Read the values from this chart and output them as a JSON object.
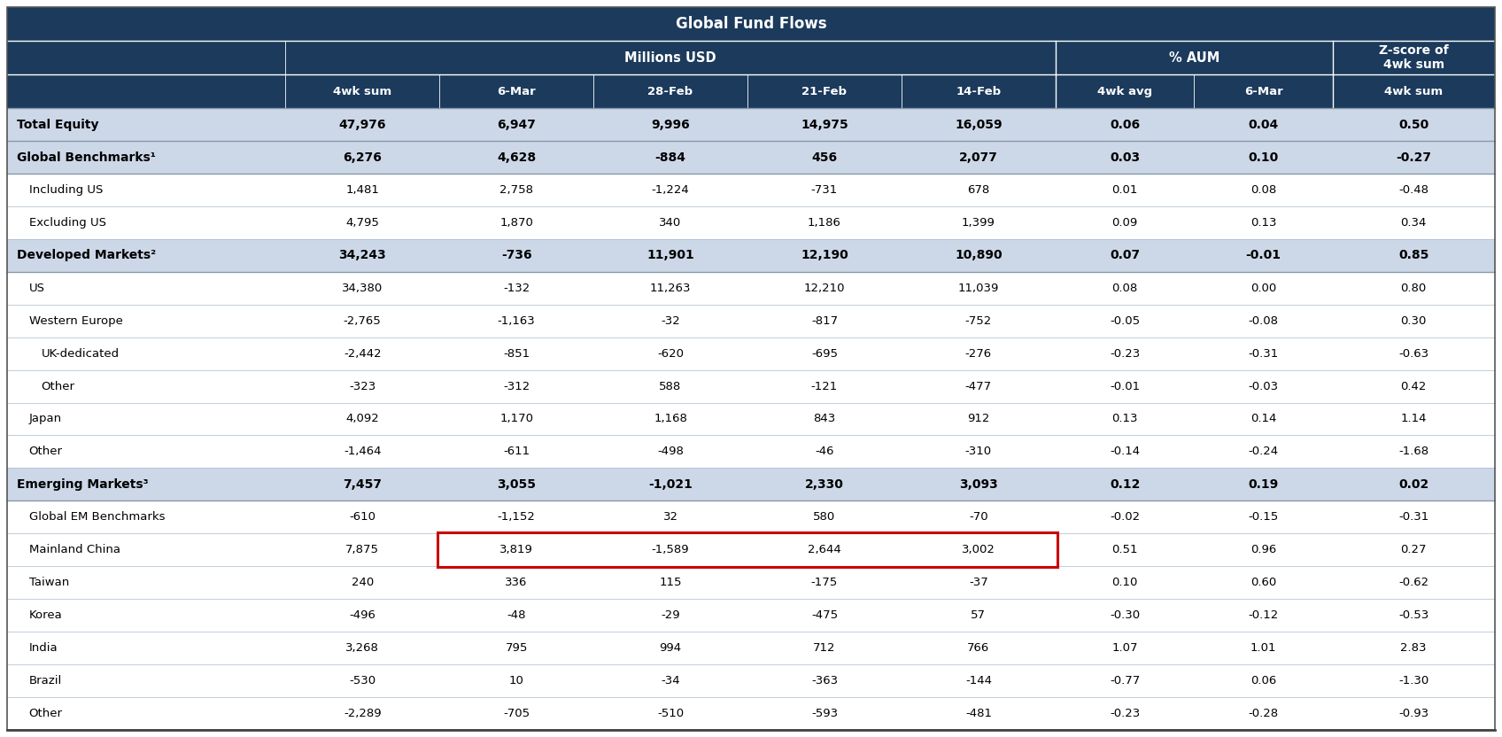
{
  "title_main": "Global Fund Flows",
  "col_headers_row3": [
    "4wk sum",
    "6-Mar",
    "28-Feb",
    "21-Feb",
    "14-Feb",
    "4wk avg",
    "6-Mar",
    "4wk sum"
  ],
  "rows": [
    {
      "label": "Total Equity",
      "bold": true,
      "indent": 0,
      "bg": "#ccd8e8",
      "values": [
        "47,976",
        "6,947",
        "9,996",
        "14,975",
        "16,059",
        "0.06",
        "0.04",
        "0.50"
      ]
    },
    {
      "label": "Global Benchmarks¹",
      "bold": true,
      "indent": 0,
      "bg": "#ccd8e8",
      "values": [
        "6,276",
        "4,628",
        "-884",
        "456",
        "2,077",
        "0.03",
        "0.10",
        "-0.27"
      ]
    },
    {
      "label": "Including US",
      "bold": false,
      "indent": 1,
      "bg": "#ffffff",
      "values": [
        "1,481",
        "2,758",
        "-1,224",
        "-731",
        "678",
        "0.01",
        "0.08",
        "-0.48"
      ]
    },
    {
      "label": "Excluding US",
      "bold": false,
      "indent": 1,
      "bg": "#ffffff",
      "values": [
        "4,795",
        "1,870",
        "340",
        "1,186",
        "1,399",
        "0.09",
        "0.13",
        "0.34"
      ]
    },
    {
      "label": "Developed Markets²",
      "bold": true,
      "indent": 0,
      "bg": "#ccd8e8",
      "values": [
        "34,243",
        "-736",
        "11,901",
        "12,190",
        "10,890",
        "0.07",
        "-0.01",
        "0.85"
      ]
    },
    {
      "label": "US",
      "bold": false,
      "indent": 1,
      "bg": "#ffffff",
      "values": [
        "34,380",
        "-132",
        "11,263",
        "12,210",
        "11,039",
        "0.08",
        "0.00",
        "0.80"
      ]
    },
    {
      "label": "Western Europe",
      "bold": false,
      "indent": 1,
      "bg": "#ffffff",
      "values": [
        "-2,765",
        "-1,163",
        "-32",
        "-817",
        "-752",
        "-0.05",
        "-0.08",
        "0.30"
      ]
    },
    {
      "label": "UK-dedicated",
      "bold": false,
      "indent": 2,
      "bg": "#ffffff",
      "values": [
        "-2,442",
        "-851",
        "-620",
        "-695",
        "-276",
        "-0.23",
        "-0.31",
        "-0.63"
      ]
    },
    {
      "label": "Other",
      "bold": false,
      "indent": 2,
      "bg": "#ffffff",
      "values": [
        "-323",
        "-312",
        "588",
        "-121",
        "-477",
        "-0.01",
        "-0.03",
        "0.42"
      ]
    },
    {
      "label": "Japan",
      "bold": false,
      "indent": 1,
      "bg": "#ffffff",
      "values": [
        "4,092",
        "1,170",
        "1,168",
        "843",
        "912",
        "0.13",
        "0.14",
        "1.14"
      ]
    },
    {
      "label": "Other",
      "bold": false,
      "indent": 1,
      "bg": "#ffffff",
      "values": [
        "-1,464",
        "-611",
        "-498",
        "-46",
        "-310",
        "-0.14",
        "-0.24",
        "-1.68"
      ]
    },
    {
      "label": "Emerging Markets³",
      "bold": true,
      "indent": 0,
      "bg": "#ccd8e8",
      "values": [
        "7,457",
        "3,055",
        "-1,021",
        "2,330",
        "3,093",
        "0.12",
        "0.19",
        "0.02"
      ]
    },
    {
      "label": "Global EM Benchmarks",
      "bold": false,
      "indent": 1,
      "bg": "#ffffff",
      "values": [
        "-610",
        "-1,152",
        "32",
        "580",
        "-70",
        "-0.02",
        "-0.15",
        "-0.31"
      ]
    },
    {
      "label": "Mainland China",
      "bold": false,
      "indent": 1,
      "bg": "#ffffff",
      "values": [
        "7,875",
        "3,819",
        "-1,589",
        "2,644",
        "3,002",
        "0.51",
        "0.96",
        "0.27"
      ],
      "highlight_box": true
    },
    {
      "label": "Taiwan",
      "bold": false,
      "indent": 1,
      "bg": "#ffffff",
      "values": [
        "240",
        "336",
        "115",
        "-175",
        "-37",
        "0.10",
        "0.60",
        "-0.62"
      ]
    },
    {
      "label": "Korea",
      "bold": false,
      "indent": 1,
      "bg": "#ffffff",
      "values": [
        "-496",
        "-48",
        "-29",
        "-475",
        "57",
        "-0.30",
        "-0.12",
        "-0.53"
      ]
    },
    {
      "label": "India",
      "bold": false,
      "indent": 1,
      "bg": "#ffffff",
      "values": [
        "3,268",
        "795",
        "994",
        "712",
        "766",
        "1.07",
        "1.01",
        "2.83"
      ]
    },
    {
      "label": "Brazil",
      "bold": false,
      "indent": 1,
      "bg": "#ffffff",
      "values": [
        "-530",
        "10",
        "-34",
        "-363",
        "-144",
        "-0.77",
        "0.06",
        "-1.30"
      ]
    },
    {
      "label": "Other",
      "bold": false,
      "indent": 1,
      "bg": "#ffffff",
      "values": [
        "-2,289",
        "-705",
        "-510",
        "-593",
        "-481",
        "-0.23",
        "-0.28",
        "-0.93"
      ]
    }
  ],
  "header_bg": "#1b3a5c",
  "header_fg": "#ffffff",
  "row_text_color": "#000000",
  "highlight_box_color": "#cc0000",
  "divider_color": "#8899aa",
  "row_divider_color": "#aabbcc"
}
